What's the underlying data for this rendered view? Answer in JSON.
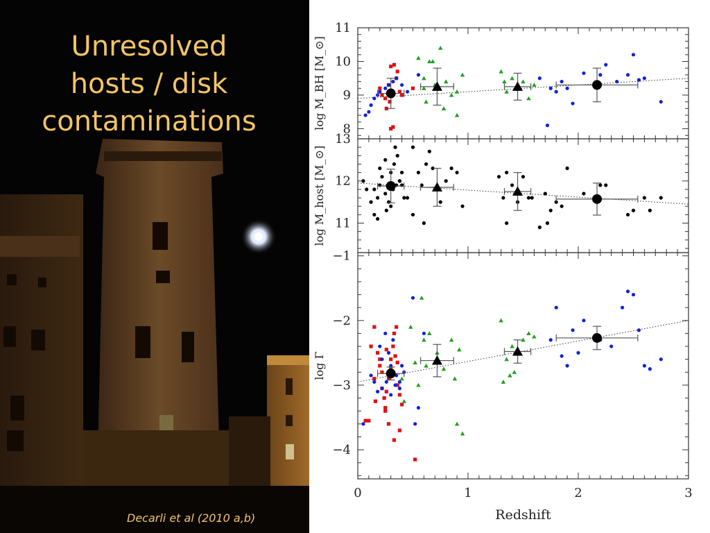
{
  "slide": {
    "title": "Unresolved\nhosts / disk\ncontaminations",
    "citation": "Decarli et al (2010 a,b)",
    "title_color": "#f5c466",
    "photo_description_icon": "night-castle-photo"
  },
  "colors": {
    "red": "#e01010",
    "blue": "#1020e0",
    "green": "#20a020",
    "black": "#000000"
  },
  "chart_data": [
    {
      "type": "scatter",
      "panel": "top",
      "ylabel": "log  M_BH  [M_⊙]",
      "xlim": [
        0,
        3
      ],
      "ylim": [
        7.7,
        11
      ],
      "yticks": [
        8,
        9,
        10,
        11
      ],
      "x_ticks_labeled": false,
      "fit_line": {
        "x": [
          0,
          3
        ],
        "y": [
          8.9,
          9.5
        ]
      },
      "series": [
        {
          "color": "red",
          "marker": "square",
          "x": [
            0.2,
            0.22,
            0.25,
            0.28,
            0.3,
            0.33,
            0.35,
            0.38,
            0.4,
            0.3,
            0.32,
            0.26,
            0.36,
            0.29,
            0.5
          ],
          "y": [
            9.2,
            9.0,
            8.9,
            9.3,
            9.85,
            9.9,
            9.5,
            9.1,
            9.0,
            8.0,
            8.05,
            8.6,
            9.7,
            8.8,
            9.2
          ]
        },
        {
          "color": "blue",
          "marker": "circle",
          "x": [
            0.07,
            0.1,
            0.12,
            0.15,
            0.18,
            0.2,
            0.25,
            0.28,
            0.32,
            0.35,
            0.4,
            0.45,
            0.55,
            1.65,
            1.75,
            1.8,
            1.85,
            1.95,
            2.05,
            2.2,
            2.25,
            2.35,
            2.45,
            2.5,
            2.55,
            2.6,
            2.75,
            1.72,
            1.9
          ],
          "y": [
            8.4,
            8.5,
            8.7,
            8.9,
            9.0,
            9.1,
            9.2,
            9.3,
            9.4,
            9.5,
            9.3,
            9.1,
            9.6,
            9.5,
            9.2,
            9.1,
            9.4,
            8.75,
            9.65,
            9.6,
            9.9,
            9.4,
            9.6,
            10.2,
            9.45,
            9.5,
            8.8,
            8.1,
            9.2
          ]
        },
        {
          "color": "green",
          "marker": "triangle",
          "x": [
            0.55,
            0.6,
            0.62,
            0.68,
            0.7,
            0.75,
            0.8,
            0.85,
            0.9,
            0.95,
            0.6,
            0.78,
            1.3,
            1.35,
            1.4,
            1.45,
            1.5,
            1.55,
            1.33,
            1.6,
            0.65,
            0.9
          ],
          "y": [
            10.1,
            9.5,
            8.8,
            10.0,
            9.3,
            10.4,
            9.4,
            9.0,
            8.4,
            9.6,
            9.2,
            8.6,
            9.7,
            9.1,
            9.5,
            9.3,
            9.4,
            8.9,
            9.4,
            9.3,
            10.0,
            9.1
          ]
        }
      ],
      "binned": [
        {
          "marker": "circle",
          "x": 0.3,
          "y": 9.05,
          "xerr": 0.12,
          "yerr": 0.45
        },
        {
          "marker": "triangle",
          "x": 0.72,
          "y": 9.25,
          "xerr": 0.15,
          "yerr": 0.55
        },
        {
          "marker": "triangle",
          "x": 1.45,
          "y": 9.25,
          "xerr": 0.12,
          "yerr": 0.4
        },
        {
          "marker": "circle",
          "x": 2.17,
          "y": 9.3,
          "xerr": 0.37,
          "yerr": 0.5
        }
      ]
    },
    {
      "type": "scatter",
      "panel": "middle",
      "ylabel": "log  M_host  [M_⊙]",
      "xlim": [
        0,
        3
      ],
      "ylim": [
        10.3,
        13
      ],
      "yticks": [
        11,
        12,
        13
      ],
      "x_ticks_labeled": false,
      "fit_line": {
        "x": [
          0,
          3
        ],
        "y": [
          11.95,
          11.45
        ]
      },
      "series": [
        {
          "color": "black",
          "marker": "circle",
          "x": [
            0.05,
            0.08,
            0.12,
            0.15,
            0.18,
            0.2,
            0.22,
            0.25,
            0.28,
            0.3,
            0.32,
            0.34,
            0.36,
            0.38,
            0.4,
            0.42,
            0.15,
            0.2,
            0.25,
            0.3,
            0.35,
            0.4,
            0.18,
            0.26,
            0.33,
            0.38,
            0.45,
            0.5,
            0.55,
            0.6,
            0.62,
            0.65,
            0.7,
            0.75,
            0.8,
            0.9,
            0.95,
            0.5,
            0.58,
            0.68,
            0.85,
            1.28,
            1.32,
            1.35,
            1.4,
            1.45,
            1.5,
            1.55,
            1.58,
            1.65,
            1.7,
            1.75,
            1.8,
            1.85,
            1.9,
            2.05,
            2.2,
            2.25,
            2.45,
            2.5,
            2.6,
            2.65,
            2.75,
            1.35,
            1.72
          ],
          "y": [
            12.0,
            11.8,
            11.5,
            11.2,
            11.6,
            11.9,
            12.1,
            11.7,
            11.5,
            12.2,
            11.8,
            12.8,
            12.6,
            12.0,
            11.9,
            11.6,
            11.8,
            12.3,
            12.5,
            11.4,
            11.9,
            12.2,
            11.1,
            11.3,
            12.4,
            12.0,
            11.6,
            12.8,
            12.2,
            11.0,
            12.4,
            12.7,
            11.8,
            11.5,
            12.0,
            12.2,
            11.4,
            11.2,
            11.9,
            12.3,
            12.3,
            12.1,
            11.6,
            12.2,
            11.9,
            11.5,
            12.1,
            11.6,
            11.6,
            10.9,
            11.7,
            11.3,
            11.5,
            11.4,
            12.3,
            11.7,
            11.9,
            11.9,
            11.2,
            11.3,
            11.6,
            11.3,
            11.6,
            11.0,
            11.0
          ]
        }
      ],
      "binned": [
        {
          "marker": "circle",
          "x": 0.3,
          "y": 11.88,
          "xerr": 0.12,
          "yerr": 0.4
        },
        {
          "marker": "triangle",
          "x": 0.72,
          "y": 11.85,
          "xerr": 0.15,
          "yerr": 0.45
        },
        {
          "marker": "triangle",
          "x": 1.45,
          "y": 11.75,
          "xerr": 0.12,
          "yerr": 0.45
        },
        {
          "marker": "circle",
          "x": 2.17,
          "y": 11.57,
          "xerr": 0.37,
          "yerr": 0.38
        }
      ]
    },
    {
      "type": "scatter",
      "panel": "bottom",
      "ylabel": "log  Γ",
      "xlabel": "Redshift",
      "xlim": [
        0,
        3
      ],
      "ylim": [
        -4.45,
        -0.95
      ],
      "xticks": [
        0,
        1,
        2,
        3
      ],
      "yticks": [
        -4,
        -3,
        -2,
        -1
      ],
      "fit_line": {
        "x": [
          0,
          3
        ],
        "y": [
          -2.95,
          -2.0
        ]
      },
      "series": [
        {
          "color": "red",
          "marker": "square",
          "x": [
            0.07,
            0.1,
            0.12,
            0.15,
            0.18,
            0.2,
            0.22,
            0.24,
            0.25,
            0.26,
            0.28,
            0.3,
            0.32,
            0.33,
            0.35,
            0.36,
            0.38,
            0.4,
            0.15,
            0.2,
            0.25,
            0.28,
            0.33,
            0.38,
            0.22,
            0.3,
            0.34,
            0.16,
            0.26,
            0.36,
            0.52
          ],
          "y": [
            -3.55,
            -3.55,
            -2.4,
            -2.1,
            -2.5,
            -2.7,
            -2.8,
            -3.2,
            -3.35,
            -3.1,
            -2.9,
            -2.6,
            -2.4,
            -2.2,
            -2.1,
            -3.0,
            -3.15,
            -3.3,
            -2.9,
            -2.6,
            -3.4,
            -3.6,
            -3.85,
            -3.7,
            -3.05,
            -2.75,
            -2.55,
            -3.25,
            -2.45,
            -2.65,
            -4.15
          ]
        },
        {
          "color": "blue",
          "marker": "circle",
          "x": [
            0.05,
            0.12,
            0.15,
            0.18,
            0.2,
            0.22,
            0.25,
            0.28,
            0.3,
            0.32,
            0.35,
            0.38,
            0.4,
            0.22,
            0.26,
            0.3,
            0.34,
            0.38,
            0.42,
            0.5,
            0.55,
            0.6,
            0.52,
            1.75,
            1.8,
            1.85,
            1.9,
            1.95,
            2.05,
            2.2,
            2.3,
            2.4,
            2.45,
            2.5,
            2.55,
            2.6,
            2.65,
            2.75,
            2.0
          ],
          "y": [
            -3.6,
            -2.85,
            -2.95,
            -3.1,
            -2.4,
            -2.6,
            -2.2,
            -2.5,
            -2.7,
            -2.3,
            -2.85,
            -3.05,
            -2.7,
            -3.05,
            -2.95,
            -3.15,
            -3.0,
            -2.95,
            -2.8,
            -1.65,
            -3.35,
            -2.2,
            -3.6,
            -2.3,
            -1.8,
            -2.55,
            -2.7,
            -2.15,
            -2.0,
            -2.3,
            -2.4,
            -1.8,
            -1.55,
            -1.6,
            -2.15,
            -2.7,
            -2.75,
            -2.6,
            -2.5
          ]
        },
        {
          "color": "green",
          "marker": "triangle",
          "x": [
            0.4,
            0.42,
            0.48,
            0.55,
            0.58,
            0.6,
            0.62,
            0.65,
            0.72,
            0.78,
            0.85,
            0.9,
            0.95,
            1.3,
            1.32,
            1.35,
            1.4,
            1.42,
            1.45,
            1.5,
            1.55,
            1.6,
            0.88,
            0.52,
            1.38,
            0.92
          ],
          "y": [
            -2.9,
            -3.25,
            -2.1,
            -3.0,
            -1.65,
            -2.3,
            -2.7,
            -2.2,
            -2.5,
            -2.75,
            -2.3,
            -3.6,
            -3.75,
            -2.0,
            -2.95,
            -2.6,
            -2.4,
            -2.8,
            -2.5,
            -2.3,
            -2.2,
            -2.25,
            -2.9,
            -2.65,
            -2.85,
            -2.45
          ]
        }
      ],
      "binned": [
        {
          "marker": "circle",
          "x": 0.3,
          "y": -2.82,
          "xerr": 0.12,
          "yerr": 0.1
        },
        {
          "marker": "triangle",
          "x": 0.72,
          "y": -2.62,
          "xerr": 0.15,
          "yerr": 0.25
        },
        {
          "marker": "triangle",
          "x": 1.45,
          "y": -2.48,
          "xerr": 0.12,
          "yerr": 0.18
        },
        {
          "marker": "circle",
          "x": 2.17,
          "y": -2.27,
          "xerr": 0.37,
          "yerr": 0.18
        }
      ]
    }
  ]
}
